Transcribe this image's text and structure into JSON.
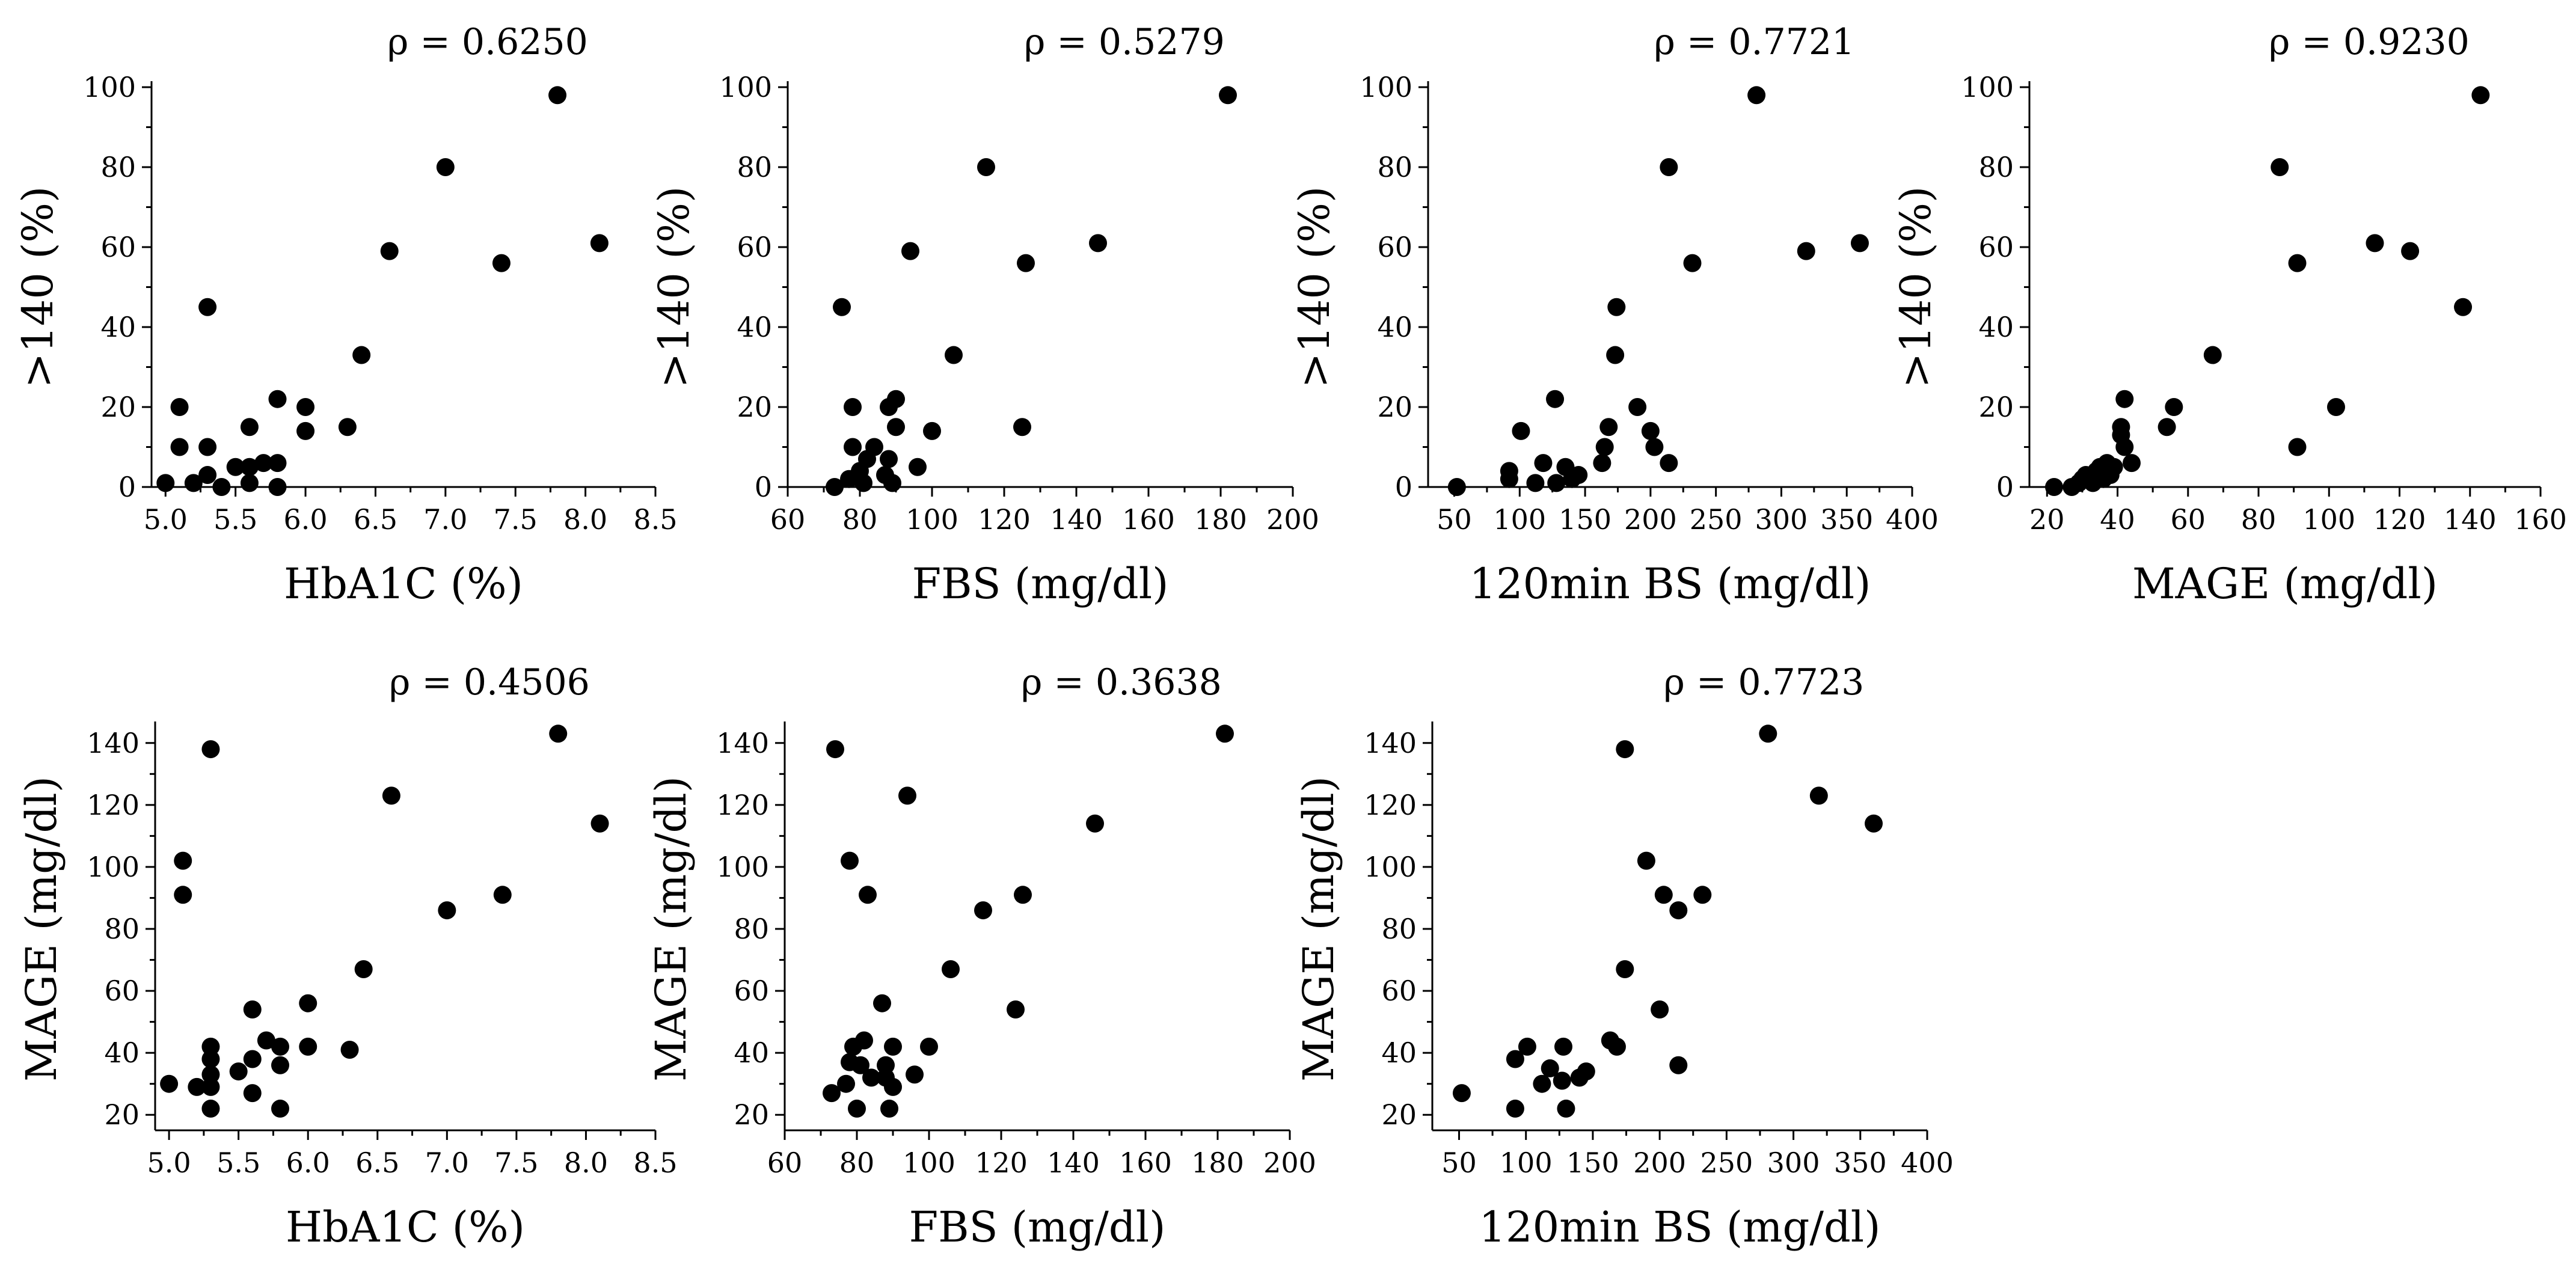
{
  "chart_data": [
    {
      "type": "scatter",
      "title": "ρ = 0.6250",
      "xlabel": "HbA1C (%)",
      "ylabel": ">140 (%)",
      "xlim": [
        4.9,
        8.5
      ],
      "ylim": [
        0,
        100
      ],
      "xticks": [
        5.0,
        5.5,
        6.0,
        6.5,
        7.0,
        7.5,
        8.0,
        8.5
      ],
      "xtick_labels": [
        "5.0",
        "5.5",
        "6.0",
        "6.5",
        "7.0",
        "7.5",
        "8.0",
        "8.5"
      ],
      "yticks": [
        0,
        20,
        40,
        60,
        80,
        100
      ],
      "ytick_labels": [
        "0",
        "20",
        "40",
        "60",
        "80",
        "100"
      ],
      "x": [
        5.0,
        5.1,
        5.1,
        5.2,
        5.3,
        5.3,
        5.3,
        5.4,
        5.5,
        5.6,
        5.6,
        5.6,
        5.7,
        5.8,
        5.8,
        5.8,
        6.0,
        6.0,
        6.3,
        6.4,
        6.6,
        7.0,
        7.4,
        7.8,
        8.1
      ],
      "y": [
        1,
        10,
        20,
        1,
        3,
        10,
        45,
        0,
        5,
        15,
        5,
        1,
        6,
        22,
        6,
        0,
        20,
        14,
        15,
        33,
        59,
        80,
        56,
        98,
        61
      ]
    },
    {
      "type": "scatter",
      "title": "ρ = 0.5279",
      "xlabel": "FBS (mg/dl)",
      "ylabel": ">140 (%)",
      "xlim": [
        60,
        200
      ],
      "ylim": [
        0,
        100
      ],
      "xticks": [
        60,
        80,
        100,
        120,
        140,
        160,
        180,
        200
      ],
      "xtick_labels": [
        "60",
        "80",
        "100",
        "120",
        "140",
        "160",
        "180",
        "200"
      ],
      "yticks": [
        0,
        20,
        40,
        60,
        80,
        100
      ],
      "ytick_labels": [
        "0",
        "20",
        "40",
        "60",
        "80",
        "100"
      ],
      "x": [
        73,
        75,
        77,
        78,
        78,
        80,
        81,
        82,
        84,
        87,
        88,
        88,
        89,
        90,
        90,
        94,
        96,
        100,
        106,
        115,
        125,
        126,
        146,
        182
      ],
      "y": [
        0,
        45,
        2,
        10,
        20,
        4,
        1,
        7,
        10,
        3,
        20,
        7,
        1,
        22,
        15,
        59,
        5,
        14,
        33,
        80,
        15,
        56,
        61,
        98
      ]
    },
    {
      "type": "scatter",
      "title": "ρ = 0.7721",
      "xlabel": "120min BS (mg/dl)",
      "ylabel": ">140 (%)",
      "xlim": [
        30,
        400
      ],
      "ylim": [
        0,
        100
      ],
      "xticks": [
        50,
        100,
        150,
        200,
        250,
        300,
        350,
        400
      ],
      "xtick_labels": [
        "50",
        "100",
        "150",
        "200",
        "250",
        "300",
        "350",
        "400"
      ],
      "yticks": [
        0,
        20,
        40,
        60,
        80,
        100
      ],
      "ytick_labels": [
        "0",
        "20",
        "40",
        "60",
        "80",
        "100"
      ],
      "x": [
        52,
        92,
        92,
        101,
        112,
        118,
        127,
        128,
        135,
        140,
        145,
        163,
        165,
        168,
        173,
        174,
        190,
        200,
        203,
        214,
        214,
        232,
        281,
        319,
        360
      ],
      "y": [
        0,
        2,
        4,
        14,
        1,
        6,
        22,
        1,
        5,
        2,
        3,
        6,
        10,
        15,
        33,
        45,
        20,
        14,
        10,
        6,
        80,
        56,
        98,
        59,
        61
      ]
    },
    {
      "type": "scatter",
      "title": "ρ = 0.9230",
      "xlabel": "MAGE (mg/dl)",
      "ylabel": ">140 (%)",
      "xlim": [
        15,
        160
      ],
      "ylim": [
        0,
        100
      ],
      "xticks": [
        20,
        40,
        60,
        80,
        100,
        120,
        140,
        160
      ],
      "xtick_labels": [
        "20",
        "40",
        "60",
        "80",
        "100",
        "120",
        "140",
        "160"
      ],
      "yticks": [
        0,
        20,
        40,
        60,
        80,
        100
      ],
      "ytick_labels": [
        "0",
        "20",
        "40",
        "60",
        "80",
        "100"
      ],
      "x": [
        22,
        27,
        29,
        30,
        31,
        33,
        34,
        35,
        36,
        37,
        38,
        39,
        41,
        41,
        42,
        42,
        44,
        54,
        56,
        67,
        86,
        91,
        91,
        102,
        113,
        123,
        138,
        143
      ],
      "y": [
        0,
        0,
        1,
        2,
        3,
        1,
        4,
        5,
        2,
        6,
        3,
        5,
        15,
        13,
        10,
        22,
        6,
        15,
        20,
        33,
        80,
        56,
        10,
        20,
        61,
        59,
        45,
        98
      ]
    },
    {
      "type": "scatter",
      "title": "ρ = 0.4506",
      "xlabel": "HbA1C (%)",
      "ylabel": "MAGE (mg/dl)",
      "xlim": [
        4.9,
        8.5
      ],
      "ylim": [
        15,
        145
      ],
      "xticks": [
        5.0,
        5.5,
        6.0,
        6.5,
        7.0,
        7.5,
        8.0,
        8.5
      ],
      "xtick_labels": [
        "5.0",
        "5.5",
        "6.0",
        "6.5",
        "7.0",
        "7.5",
        "8.0",
        "8.5"
      ],
      "yticks": [
        20,
        40,
        60,
        80,
        100,
        120,
        140
      ],
      "ytick_labels": [
        "20",
        "40",
        "60",
        "80",
        "100",
        "120",
        "140"
      ],
      "x": [
        5.0,
        5.1,
        5.1,
        5.2,
        5.3,
        5.3,
        5.3,
        5.3,
        5.3,
        5.3,
        5.5,
        5.6,
        5.6,
        5.6,
        5.7,
        5.8,
        5.8,
        5.8,
        6.0,
        6.0,
        6.3,
        6.4,
        6.6,
        7.0,
        7.4,
        7.8,
        8.1
      ],
      "y": [
        30,
        91,
        102,
        29,
        138,
        42,
        38,
        33,
        29,
        22,
        34,
        54,
        38,
        27,
        44,
        36,
        42,
        22,
        56,
        42,
        41,
        67,
        123,
        86,
        91,
        143,
        114
      ]
    },
    {
      "type": "scatter",
      "title": "ρ = 0.3638",
      "xlabel": "FBS (mg/dl)",
      "ylabel": "MAGE (mg/dl)",
      "xlim": [
        60,
        200
      ],
      "ylim": [
        15,
        145
      ],
      "xticks": [
        60,
        80,
        100,
        120,
        140,
        160,
        180,
        200
      ],
      "xtick_labels": [
        "60",
        "80",
        "100",
        "120",
        "140",
        "160",
        "180",
        "200"
      ],
      "yticks": [
        20,
        40,
        60,
        80,
        100,
        120,
        140
      ],
      "ytick_labels": [
        "20",
        "40",
        "60",
        "80",
        "100",
        "120",
        "140"
      ],
      "x": [
        73,
        74,
        77,
        78,
        78,
        79,
        80,
        81,
        82,
        83,
        84,
        87,
        88,
        88,
        89,
        90,
        90,
        94,
        96,
        100,
        106,
        115,
        124,
        126,
        146,
        182
      ],
      "y": [
        27,
        138,
        30,
        102,
        37,
        42,
        22,
        36,
        44,
        91,
        32,
        56,
        36,
        32,
        22,
        42,
        29,
        123,
        33,
        42,
        67,
        86,
        54,
        91,
        114,
        143
      ]
    },
    {
      "type": "scatter",
      "title": "ρ = 0.7723",
      "xlabel": "120min BS (mg/dl)",
      "ylabel": "MAGE (mg/dl)",
      "xlim": [
        30,
        400
      ],
      "ylim": [
        15,
        145
      ],
      "xticks": [
        50,
        100,
        150,
        200,
        250,
        300,
        350,
        400
      ],
      "xtick_labels": [
        "50",
        "100",
        "150",
        "200",
        "250",
        "300",
        "350",
        "400"
      ],
      "yticks": [
        20,
        40,
        60,
        80,
        100,
        120,
        140
      ],
      "ytick_labels": [
        "20",
        "40",
        "60",
        "80",
        "100",
        "120",
        "140"
      ],
      "x": [
        52,
        92,
        92,
        101,
        112,
        118,
        127,
        128,
        130,
        140,
        145,
        163,
        168,
        174,
        174,
        190,
        200,
        203,
        214,
        214,
        232,
        281,
        319,
        360
      ],
      "y": [
        27,
        22,
        38,
        42,
        30,
        35,
        31,
        42,
        22,
        32,
        34,
        44,
        42,
        138,
        67,
        102,
        54,
        91,
        86,
        36,
        91,
        143,
        123,
        114
      ]
    }
  ]
}
